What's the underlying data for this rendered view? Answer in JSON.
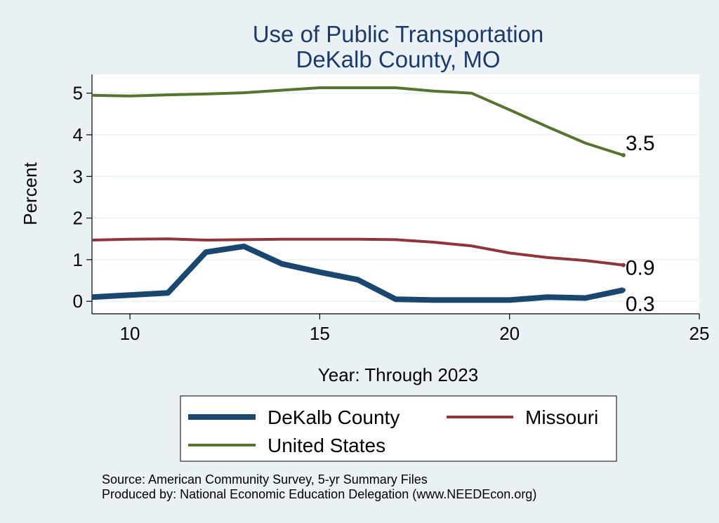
{
  "chart_data": {
    "type": "line",
    "title": [
      "Use of Public Transportation",
      "DeKalb County, MO"
    ],
    "xlabel": "Year: Through 2023",
    "ylabel": "Percent",
    "xlim": [
      9,
      25
    ],
    "ylim": [
      -0.3,
      5.45
    ],
    "xticks": [
      "10",
      "15",
      "20",
      "25"
    ],
    "xtick_values": [
      10,
      15,
      20,
      25
    ],
    "yticks": [
      "0",
      "1",
      "2",
      "3",
      "4",
      "5"
    ],
    "ytick_values": [
      0,
      1,
      2,
      3,
      4,
      5
    ],
    "grid": true,
    "legend_position": "bottom",
    "series": [
      {
        "name": "DeKalb County",
        "color": "#1a476f",
        "x": [
          9,
          10,
          11,
          12,
          13,
          14,
          15,
          16,
          17,
          18,
          19,
          20,
          21,
          22,
          23
        ],
        "values": [
          0.1,
          0.15,
          0.2,
          1.18,
          1.32,
          0.9,
          0.7,
          0.52,
          0.05,
          0.03,
          0.03,
          0.03,
          0.1,
          0.08,
          0.27
        ],
        "end_label": "0.3"
      },
      {
        "name": "Missouri",
        "color": "#90353b",
        "x": [
          9,
          10,
          11,
          12,
          13,
          14,
          15,
          16,
          17,
          18,
          19,
          20,
          21,
          22,
          23
        ],
        "values": [
          1.47,
          1.49,
          1.5,
          1.47,
          1.48,
          1.49,
          1.49,
          1.49,
          1.48,
          1.42,
          1.33,
          1.16,
          1.05,
          0.98,
          0.87
        ],
        "end_label": "0.9"
      },
      {
        "name": "United States",
        "color": "#55752f",
        "x": [
          9,
          10,
          11,
          12,
          13,
          14,
          15,
          16,
          17,
          18,
          19,
          20,
          21,
          22,
          23
        ],
        "values": [
          4.95,
          4.93,
          4.96,
          4.98,
          5.01,
          5.07,
          5.13,
          5.13,
          5.13,
          5.05,
          5.0,
          4.6,
          4.19,
          3.8,
          3.51
        ],
        "end_label": "3.5"
      }
    ],
    "notes": [
      "Source: American Community Survey, 5-yr Summary Files",
      "Produced by: National Economic Education Delegation (www.NEEDEcon.org)"
    ]
  }
}
